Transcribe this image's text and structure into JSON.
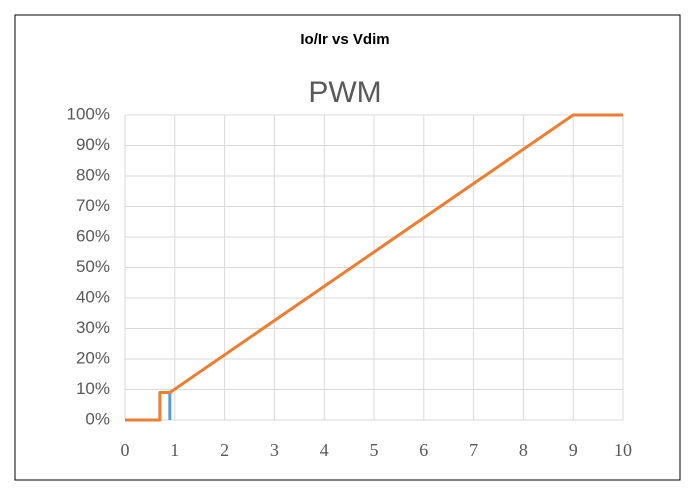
{
  "header": "Io/Ir vs Vdim",
  "chart_data": {
    "type": "line",
    "title": "PWM",
    "series": [
      {
        "color": "#5b9bd5",
        "x": [
          0.9,
          0.9
        ],
        "values": [
          0,
          9
        ]
      },
      {
        "color": "#ed7d31",
        "x": [
          0,
          0.7,
          0.7,
          0.9,
          9,
          10
        ],
        "values": [
          0,
          0,
          9,
          9,
          100,
          100
        ]
      }
    ],
    "xlim": [
      0,
      10
    ],
    "xticks": [
      0,
      1,
      2,
      3,
      4,
      5,
      6,
      7,
      8,
      9,
      10
    ],
    "ylim": [
      0,
      100
    ],
    "yticks": [
      {
        "value": 0,
        "label": "0%"
      },
      {
        "value": 10,
        "label": "10%"
      },
      {
        "value": 20,
        "label": "20%"
      },
      {
        "value": 30,
        "label": "30%"
      },
      {
        "value": 40,
        "label": "40%"
      },
      {
        "value": 50,
        "label": "50%"
      },
      {
        "value": 60,
        "label": "60%"
      },
      {
        "value": 70,
        "label": "70%"
      },
      {
        "value": 80,
        "label": "80%"
      },
      {
        "value": 90,
        "label": "90%"
      },
      {
        "value": 100,
        "label": "100%"
      }
    ],
    "grid": true
  }
}
